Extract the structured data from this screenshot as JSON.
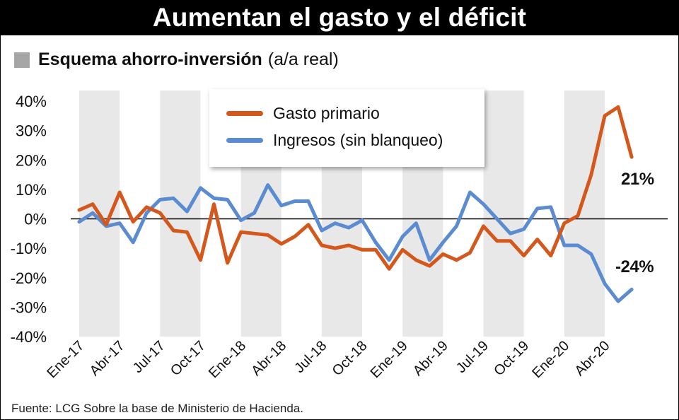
{
  "title": "Aumentan el gasto y el déficit",
  "subtitle": {
    "bold": "Esquema ahorro-inversión",
    "light": "(a/a real)"
  },
  "source": "Fuente: LCG Sobre la base de Ministerio de Hacienda.",
  "colors": {
    "gasto": "#d4581b",
    "ingresos": "#5b8bd0",
    "band": "#e8e8e8"
  },
  "chart_data": {
    "type": "line",
    "title": "Esquema ahorro-inversión (a/a real)",
    "x_tick_labels": [
      "Ene-17",
      "Abr-17",
      "Jul-17",
      "Oct-17",
      "Ene-18",
      "Abr-18",
      "Jul-18",
      "Oct-18",
      "Ene-19",
      "Abr-19",
      "Jul-19",
      "Oct-19",
      "Ene-20",
      "Abr-20"
    ],
    "y_tick_labels": [
      "40%",
      "30%",
      "20%",
      "10%",
      "0%",
      "-10%",
      "-20%",
      "-30%",
      "-40%"
    ],
    "ylim": [
      -40,
      40
    ],
    "grid": false,
    "legend_position": "top-center",
    "x": [
      "2017-01",
      "2017-02",
      "2017-03",
      "2017-04",
      "2017-05",
      "2017-06",
      "2017-07",
      "2017-08",
      "2017-09",
      "2017-10",
      "2017-11",
      "2017-12",
      "2018-01",
      "2018-02",
      "2018-03",
      "2018-04",
      "2018-05",
      "2018-06",
      "2018-07",
      "2018-08",
      "2018-09",
      "2018-10",
      "2018-11",
      "2018-12",
      "2019-01",
      "2019-02",
      "2019-03",
      "2019-04",
      "2019-05",
      "2019-06",
      "2019-07",
      "2019-08",
      "2019-09",
      "2019-10",
      "2019-11",
      "2019-12",
      "2020-01",
      "2020-02",
      "2020-03",
      "2020-04",
      "2020-05",
      "2020-06"
    ],
    "series": [
      {
        "name": "Gasto primario",
        "values": [
          3,
          5,
          -2,
          9,
          -1,
          4,
          2,
          -4,
          -4.5,
          -14,
          5,
          -15,
          -4.5,
          -5,
          -5.5,
          -8.5,
          -6,
          -2,
          -9,
          -10,
          -9,
          -10.5,
          -10.5,
          -17,
          -10.5,
          -14,
          -16,
          -12,
          -14,
          -11.5,
          -2.5,
          -7.5,
          -7.5,
          -12.5,
          -7,
          -12.5,
          -1.5,
          1,
          15,
          35,
          38,
          21
        ]
      },
      {
        "name": "Ingresos (sin blanqueo)",
        "values": [
          -1,
          2,
          -2.5,
          -1.5,
          -8,
          2,
          6.5,
          7,
          2.5,
          10.5,
          7,
          6.5,
          -0.5,
          2,
          11.5,
          4.5,
          6,
          6,
          -4,
          -1.5,
          -3,
          -0.5,
          -8,
          -14,
          -6,
          -1.5,
          -14,
          -8,
          -2.5,
          9,
          5,
          0,
          -5,
          -3.5,
          3.5,
          4,
          -9,
          -9,
          -12,
          -22,
          -28,
          -24
        ]
      }
    ],
    "annotations": [
      "21%",
      "-24%"
    ]
  }
}
